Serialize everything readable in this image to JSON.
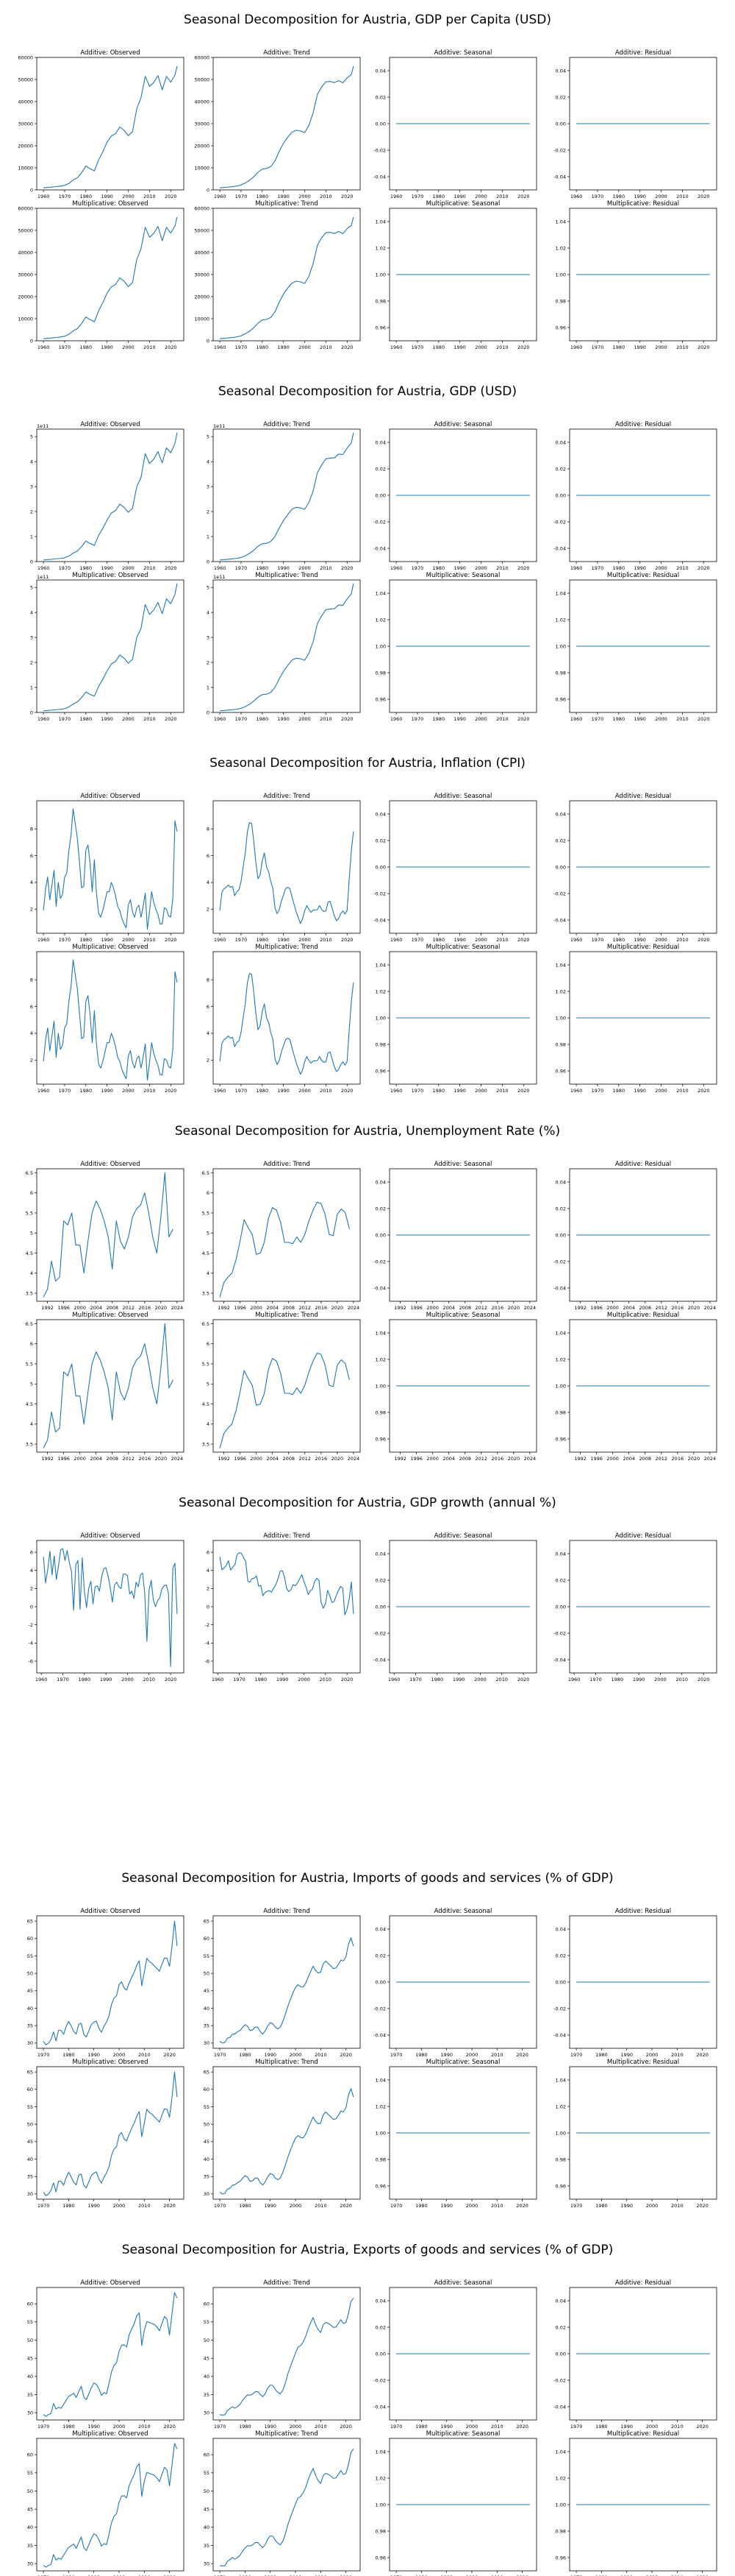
{
  "colors": {
    "line": "#1f77b4",
    "axis": "#000000",
    "background": "#ffffff"
  },
  "chart_data": [
    {
      "type": "line",
      "title": "Seasonal Decomposition for Austria, GDP per Capita (USD)",
      "panel_titles": [
        "Additive: Observed",
        "Additive: Trend",
        "Additive: Seasonal",
        "Additive: Residual",
        "Multiplicative: Observed",
        "Multiplicative: Trend",
        "Multiplicative: Seasonal",
        "Multiplicative: Residual"
      ],
      "x": [
        1960,
        1962,
        1964,
        1966,
        1968,
        1970,
        1972,
        1974,
        1976,
        1978,
        1980,
        1982,
        1984,
        1986,
        1988,
        1990,
        1992,
        1994,
        1996,
        1998,
        2000,
        2002,
        2004,
        2006,
        2008,
        2010,
        2012,
        2014,
        2016,
        2018,
        2020,
        2022,
        2023
      ],
      "observed": [
        935,
        1100,
        1280,
        1500,
        1700,
        2050,
        2900,
        4500,
        5500,
        7800,
        10800,
        9600,
        8600,
        13500,
        17300,
        21600,
        24400,
        25500,
        28500,
        27000,
        24500,
        26400,
        36800,
        41700,
        51400,
        46900,
        48600,
        51800,
        45300,
        51400,
        48800,
        52000,
        56000
      ],
      "xlim": [
        1960,
        2023
      ],
      "obs_ylim": [
        0,
        60000
      ],
      "obs_yticks": [
        0,
        10000,
        20000,
        30000,
        40000,
        50000,
        60000
      ],
      "xticks": [
        1960,
        1970,
        1980,
        1990,
        2000,
        2010,
        2020
      ],
      "xtick_labels": [
        "1960",
        "1970",
        "1980",
        "1990",
        "2000",
        "2010",
        "2020"
      ],
      "offset_text": "",
      "add_seasonal_yticks": [
        "0.04",
        "0.02",
        "0.00",
        "-0.02",
        "-0.04"
      ],
      "add_residual_yticks": [
        "0.04",
        "0.02",
        "0.00",
        "-0.02",
        "-0.04"
      ],
      "mult_seasonal_yticks": [
        "1.04",
        "1.02",
        "1.00",
        "0.98",
        "0.96"
      ],
      "mult_residual_yticks": [
        "1.04",
        "1.02",
        "1.00",
        "0.98",
        "0.96"
      ],
      "rows": 2
    },
    {
      "type": "line",
      "title": "Seasonal Decomposition for Austria, GDP (USD)",
      "panel_titles": [
        "Additive: Observed",
        "Additive: Trend",
        "Additive: Seasonal",
        "Additive: Residual",
        "Multiplicative: Observed",
        "Multiplicative: Trend",
        "Multiplicative: Seasonal",
        "Multiplicative: Residual"
      ],
      "x": [
        1960,
        1962,
        1964,
        1966,
        1968,
        1970,
        1972,
        1974,
        1976,
        1978,
        1980,
        1982,
        1984,
        1986,
        1988,
        1990,
        1992,
        1994,
        1996,
        1998,
        2000,
        2002,
        2004,
        2006,
        2008,
        2010,
        2012,
        2014,
        2016,
        2018,
        2020,
        2022,
        2023
      ],
      "observed": [
        0.066,
        0.078,
        0.092,
        0.11,
        0.125,
        0.15,
        0.22,
        0.34,
        0.42,
        0.6,
        0.82,
        0.72,
        0.65,
        1.04,
        1.33,
        1.66,
        1.94,
        2.04,
        2.3,
        2.17,
        1.97,
        2.13,
        3.0,
        3.36,
        4.32,
        3.92,
        4.1,
        4.4,
        3.95,
        4.55,
        4.35,
        4.72,
        5.16
      ],
      "xlim": [
        1960,
        2023
      ],
      "obs_ylim": [
        0,
        5.3
      ],
      "obs_yticks": [
        0,
        1,
        2,
        3,
        4,
        5
      ],
      "xticks": [
        1960,
        1970,
        1980,
        1990,
        2000,
        2010,
        2020
      ],
      "xtick_labels": [
        "1960",
        "1970",
        "1980",
        "1990",
        "2000",
        "2010",
        "2020"
      ],
      "offset_text": "1e11",
      "add_seasonal_yticks": [
        "0.04",
        "0.02",
        "0.00",
        "-0.02",
        "-0.04"
      ],
      "add_residual_yticks": [
        "0.04",
        "0.02",
        "0.00",
        "-0.02",
        "-0.04"
      ],
      "mult_seasonal_yticks": [
        "1.04",
        "1.02",
        "1.00",
        "0.98",
        "0.96"
      ],
      "mult_residual_yticks": [
        "1.04",
        "1.02",
        "1.00",
        "0.98",
        "0.96"
      ],
      "rows": 2
    },
    {
      "type": "line",
      "title": "Seasonal Decomposition for Austria, Inflation (CPI)",
      "panel_titles": [
        "Additive: Observed",
        "Additive: Trend",
        "Additive: Seasonal",
        "Additive: Residual",
        "Multiplicative: Observed",
        "Multiplicative: Trend",
        "Multiplicative: Seasonal",
        "Multiplicative: Residual"
      ],
      "x": [
        1960,
        1961,
        1962,
        1963,
        1964,
        1965,
        1966,
        1967,
        1968,
        1969,
        1970,
        1971,
        1972,
        1973,
        1974,
        1975,
        1976,
        1977,
        1978,
        1979,
        1980,
        1981,
        1982,
        1983,
        1984,
        1985,
        1986,
        1987,
        1988,
        1989,
        1990,
        1991,
        1992,
        1993,
        1994,
        1995,
        1996,
        1997,
        1998,
        1999,
        2000,
        2001,
        2002,
        2003,
        2004,
        2005,
        2006,
        2007,
        2008,
        2009,
        2010,
        2011,
        2012,
        2013,
        2014,
        2015,
        2016,
        2017,
        2018,
        2019,
        2020,
        2021,
        2022,
        2023
      ],
      "observed": [
        1.9,
        3.5,
        4.4,
        2.7,
        3.8,
        4.9,
        2.2,
        4.0,
        2.8,
        3.1,
        4.4,
        4.7,
        6.4,
        7.5,
        9.5,
        8.4,
        7.3,
        5.5,
        3.6,
        3.7,
        6.4,
        6.8,
        5.4,
        3.3,
        5.7,
        3.2,
        1.7,
        1.4,
        1.9,
        2.6,
        3.3,
        3.3,
        4.0,
        3.6,
        3.0,
        2.2,
        1.9,
        1.3,
        0.9,
        0.6,
        2.3,
        2.7,
        1.8,
        1.4,
        2.1,
        2.3,
        1.4,
        2.2,
        3.2,
        0.5,
        1.8,
        3.3,
        2.5,
        2.0,
        1.6,
        0.9,
        0.9,
        2.1,
        2.0,
        1.5,
        1.4,
        2.8,
        8.6,
        7.8
      ],
      "xlim": [
        1960,
        2023
      ],
      "obs_ylim": [
        0.2,
        10.1
      ],
      "obs_yticks": [
        2,
        4,
        6,
        8
      ],
      "xticks": [
        1960,
        1970,
        1980,
        1990,
        2000,
        2010,
        2020
      ],
      "xtick_labels": [
        "1960",
        "1970",
        "1980",
        "1990",
        "2000",
        "2010",
        "2020"
      ],
      "offset_text": "",
      "add_seasonal_yticks": [
        "0.04",
        "0.02",
        "0.00",
        "-0.02",
        "-0.04"
      ],
      "add_residual_yticks": [
        "0.04",
        "0.02",
        "0.00",
        "-0.02",
        "-0.04"
      ],
      "mult_seasonal_yticks": [
        "1.04",
        "1.02",
        "1.00",
        "0.98",
        "0.96"
      ],
      "mult_residual_yticks": [
        "1.04",
        "1.02",
        "1.00",
        "0.98",
        "0.96"
      ],
      "rows": 2
    },
    {
      "type": "line",
      "title": "Seasonal Decomposition for Austria, Unemployment Rate (%)",
      "panel_titles": [
        "Additive: Observed",
        "Additive: Trend",
        "Additive: Seasonal",
        "Additive: Residual",
        "Multiplicative: Observed",
        "Multiplicative: Trend",
        "Multiplicative: Seasonal",
        "Multiplicative: Residual"
      ],
      "x": [
        1991,
        1992,
        1993,
        1994,
        1995,
        1996,
        1997,
        1998,
        1999,
        2000,
        2001,
        2002,
        2003,
        2004,
        2005,
        2006,
        2007,
        2008,
        2009,
        2010,
        2011,
        2012,
        2013,
        2014,
        2015,
        2016,
        2017,
        2018,
        2019,
        2020,
        2021,
        2022,
        2023
      ],
      "observed": [
        3.4,
        3.6,
        4.3,
        3.8,
        3.9,
        5.3,
        5.2,
        5.5,
        4.7,
        4.7,
        4.0,
        4.8,
        5.5,
        5.8,
        5.6,
        5.3,
        4.9,
        4.1,
        5.3,
        4.8,
        4.6,
        4.9,
        5.4,
        5.6,
        5.7,
        6.0,
        5.5,
        4.9,
        4.5,
        5.4,
        6.5,
        4.9,
        5.1
      ],
      "xlim": [
        1991,
        2024
      ],
      "obs_ylim": [
        3.3,
        6.6
      ],
      "obs_yticks": [
        3.5,
        4.0,
        4.5,
        5.0,
        5.5,
        6.0,
        6.5
      ],
      "xticks": [
        1992,
        1996,
        2000,
        2004,
        2008,
        2012,
        2016,
        2020,
        2024
      ],
      "xtick_labels": [
        "1992",
        "1996",
        "2000",
        "2004",
        "2008",
        "2012",
        "2016",
        "2020",
        "2024"
      ],
      "offset_text": "",
      "add_seasonal_yticks": [
        "0.04",
        "0.02",
        "0.00",
        "-0.02",
        "-0.04"
      ],
      "add_residual_yticks": [
        "0.04",
        "0.02",
        "0.00",
        "-0.02",
        "-0.04"
      ],
      "mult_seasonal_yticks": [
        "1.04",
        "1.02",
        "1.00",
        "0.98",
        "0.96"
      ],
      "mult_residual_yticks": [
        "1.04",
        "1.02",
        "1.00",
        "0.98",
        "0.96"
      ],
      "rows": 2
    },
    {
      "type": "line",
      "title": "Seasonal Decomposition for Austria, GDP growth (annual %)",
      "panel_titles": [
        "Additive: Observed",
        "Additive: Trend",
        "Additive: Seasonal",
        "Additive: Residual"
      ],
      "x": [
        1961,
        1962,
        1963,
        1964,
        1965,
        1966,
        1967,
        1968,
        1969,
        1970,
        1971,
        1972,
        1973,
        1974,
        1975,
        1976,
        1977,
        1978,
        1979,
        1980,
        1981,
        1982,
        1983,
        1984,
        1985,
        1986,
        1987,
        1988,
        1989,
        1990,
        1991,
        1992,
        1993,
        1994,
        1995,
        1996,
        1997,
        1998,
        1999,
        2000,
        2001,
        2002,
        2003,
        2004,
        2005,
        2006,
        2007,
        2008,
        2009,
        2010,
        2011,
        2012,
        2013,
        2014,
        2015,
        2016,
        2017,
        2018,
        2019,
        2020,
        2021,
        2022,
        2023
      ],
      "observed": [
        5.5,
        2.6,
        4.1,
        6.1,
        3.5,
        5.6,
        3.0,
        4.5,
        6.3,
        6.4,
        5.1,
        6.2,
        4.9,
        3.9,
        -0.4,
        4.6,
        5.1,
        -0.3,
        5.4,
        1.7,
        -0.1,
        2.0,
        2.8,
        0.3,
        2.2,
        2.3,
        1.7,
        3.3,
        4.2,
        4.3,
        3.4,
        2.1,
        0.5,
        2.4,
        2.7,
        2.2,
        2.0,
        3.6,
        3.6,
        3.4,
        1.4,
        1.7,
        0.9,
        2.7,
        2.2,
        3.5,
        3.7,
        1.5,
        -3.8,
        1.8,
        2.9,
        0.7,
        0.0,
        0.7,
        1.0,
        2.0,
        2.3,
        2.4,
        1.5,
        -6.6,
        4.2,
        4.8,
        -0.8
      ],
      "xlim": [
        1961,
        2023
      ],
      "obs_ylim": [
        -7.3,
        7.3
      ],
      "obs_yticks": [
        -6,
        -4,
        -2,
        0,
        2,
        4,
        6
      ],
      "xticks": [
        1960,
        1970,
        1980,
        1990,
        2000,
        2010,
        2020
      ],
      "xtick_labels": [
        "1960",
        "1970",
        "1980",
        "1990",
        "2000",
        "2010",
        "2020"
      ],
      "offset_text": "",
      "add_seasonal_yticks": [
        "0.04",
        "0.02",
        "0.00",
        "-0.02",
        "-0.04"
      ],
      "add_residual_yticks": [
        "0.04",
        "0.02",
        "0.00",
        "-0.02",
        "-0.04"
      ],
      "mult_seasonal_yticks": [],
      "mult_residual_yticks": [],
      "rows": 1
    },
    {
      "type": "line",
      "title": "Seasonal Decomposition for Austria, Imports of goods and services (% of GDP)",
      "panel_titles": [
        "Additive: Observed",
        "Additive: Trend",
        "Additive: Seasonal",
        "Additive: Residual",
        "Multiplicative: Observed",
        "Multiplicative: Trend",
        "Multiplicative: Seasonal",
        "Multiplicative: Residual"
      ],
      "x": [
        1970,
        1971,
        1972,
        1973,
        1974,
        1975,
        1976,
        1977,
        1978,
        1979,
        1980,
        1981,
        1982,
        1983,
        1984,
        1985,
        1986,
        1987,
        1988,
        1989,
        1990,
        1991,
        1992,
        1993,
        1994,
        1995,
        1996,
        1997,
        1998,
        1999,
        2000,
        2001,
        2002,
        2003,
        2004,
        2005,
        2006,
        2007,
        2008,
        2009,
        2010,
        2011,
        2012,
        2013,
        2014,
        2015,
        2016,
        2017,
        2018,
        2019,
        2020,
        2021,
        2022,
        2023
      ],
      "observed": [
        30.5,
        29.5,
        30.0,
        31.0,
        33.2,
        30.6,
        33.7,
        33.6,
        32.5,
        34.7,
        36.2,
        34.9,
        33.3,
        32.6,
        35.4,
        35.7,
        32.5,
        31.7,
        33.5,
        35.3,
        36.0,
        36.3,
        34.3,
        33.1,
        34.8,
        36.0,
        37.8,
        41.1,
        42.9,
        43.6,
        46.8,
        47.6,
        45.8,
        45.2,
        47.2,
        48.9,
        50.3,
        52.3,
        53.6,
        46.4,
        50.3,
        54.3,
        53.4,
        52.9,
        52.1,
        51.4,
        50.6,
        52.6,
        54.4,
        54.3,
        52.0,
        57.8,
        65.0,
        57.8
      ],
      "xlim": [
        1970,
        2023
      ],
      "obs_ylim": [
        28.5,
        66.5
      ],
      "obs_yticks": [
        30,
        35,
        40,
        45,
        50,
        55,
        60,
        65
      ],
      "xticks": [
        1970,
        1980,
        1990,
        2000,
        2010,
        2020
      ],
      "xtick_labels": [
        "1970",
        "1980",
        "1990",
        "2000",
        "2010",
        "2020"
      ],
      "offset_text": "",
      "add_seasonal_yticks": [
        "0.04",
        "0.02",
        "0.00",
        "-0.02",
        "-0.04"
      ],
      "add_residual_yticks": [
        "0.04",
        "0.02",
        "0.00",
        "-0.02",
        "-0.04"
      ],
      "mult_seasonal_yticks": [
        "1.04",
        "1.02",
        "1.00",
        "0.98",
        "0.96"
      ],
      "mult_residual_yticks": [
        "1.04",
        "1.02",
        "1.00",
        "0.98",
        "0.96"
      ],
      "rows": 2
    },
    {
      "type": "line",
      "title": "Seasonal Decomposition for Austria, Exports of goods and services (% of GDP)",
      "panel_titles": [
        "Additive: Observed",
        "Additive: Trend",
        "Additive: Seasonal",
        "Additive: Residual",
        "Multiplicative: Observed",
        "Multiplicative: Trend",
        "Multiplicative: Seasonal",
        "Multiplicative: Residual"
      ],
      "x": [
        1970,
        1971,
        1972,
        1973,
        1974,
        1975,
        1976,
        1977,
        1978,
        1979,
        1980,
        1981,
        1982,
        1983,
        1984,
        1985,
        1986,
        1987,
        1988,
        1989,
        1990,
        1991,
        1992,
        1993,
        1994,
        1995,
        1996,
        1997,
        1998,
        1999,
        2000,
        2001,
        2002,
        2003,
        2004,
        2005,
        2006,
        2007,
        2008,
        2009,
        2010,
        2011,
        2012,
        2013,
        2014,
        2015,
        2016,
        2017,
        2018,
        2019,
        2020,
        2021,
        2022,
        2023
      ],
      "observed": [
        29.5,
        29.0,
        29.5,
        29.8,
        32.5,
        31.0,
        31.5,
        31.2,
        32.3,
        33.4,
        34.5,
        34.9,
        35.4,
        34.2,
        35.8,
        37.3,
        34.4,
        33.6,
        35.2,
        36.9,
        38.2,
        37.8,
        36.6,
        34.8,
        35.5,
        35.2,
        38.0,
        41.3,
        43.0,
        43.8,
        46.9,
        48.6,
        48.7,
        48.1,
        51.5,
        53.1,
        54.5,
        56.7,
        57.5,
        48.5,
        52.7,
        55.1,
        54.9,
        54.6,
        54.3,
        53.6,
        52.6,
        54.6,
        56.5,
        55.8,
        51.4,
        57.3,
        63.1,
        61.6
      ],
      "xlim": [
        1970,
        2023
      ],
      "obs_ylim": [
        28.0,
        64.5
      ],
      "obs_yticks": [
        30,
        35,
        40,
        45,
        50,
        55,
        60
      ],
      "xticks": [
        1970,
        1980,
        1990,
        2000,
        2010,
        2020
      ],
      "xtick_labels": [
        "1970",
        "1980",
        "1990",
        "2000",
        "2010",
        "2020"
      ],
      "offset_text": "",
      "add_seasonal_yticks": [
        "0.04",
        "0.02",
        "0.00",
        "-0.02",
        "-0.04"
      ],
      "add_residual_yticks": [
        "0.04",
        "0.02",
        "0.00",
        "-0.02",
        "-0.04"
      ],
      "mult_seasonal_yticks": [
        "1.04",
        "1.02",
        "1.00",
        "0.98",
        "0.96"
      ],
      "mult_residual_yticks": [
        "1.04",
        "1.02",
        "1.00",
        "0.98",
        "0.96"
      ],
      "rows": 2
    }
  ]
}
